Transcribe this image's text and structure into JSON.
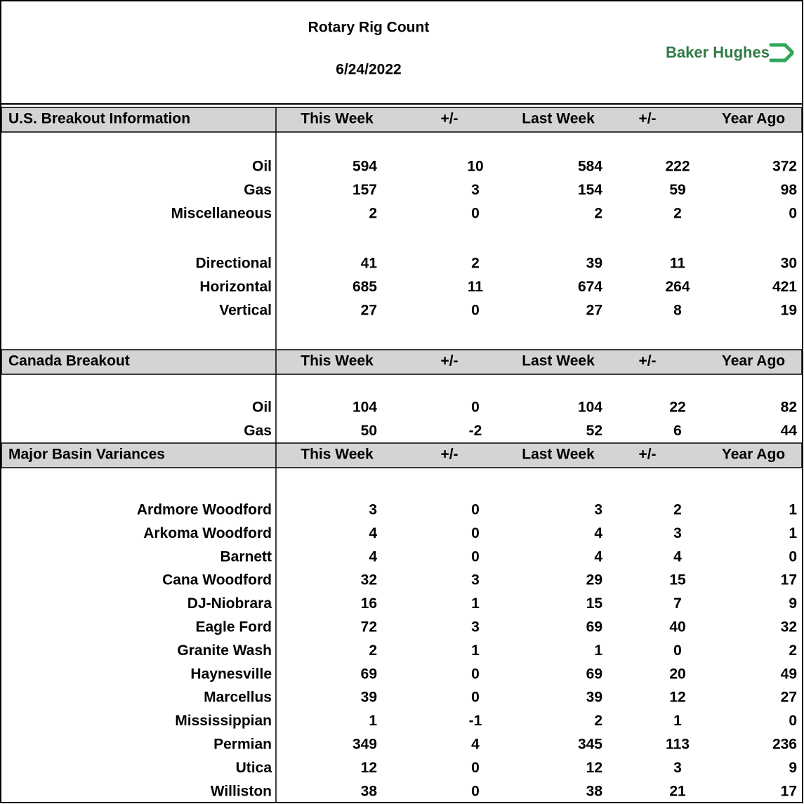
{
  "header": {
    "title": "Rotary Rig Count",
    "date": "6/24/2022",
    "logo": "Baker Hughes"
  },
  "sections": [
    {
      "title": "U.S. Breakout Information",
      "columns": [
        "This Week",
        "+/-",
        "Last Week",
        "+/-",
        "Year Ago"
      ],
      "groups": [
        [
          {
            "label": "Oil",
            "values": [
              594,
              10,
              584,
              222,
              372
            ]
          },
          {
            "label": "Gas",
            "values": [
              157,
              3,
              154,
              59,
              98
            ]
          },
          {
            "label": "Miscellaneous",
            "values": [
              2,
              0,
              2,
              2,
              0
            ]
          }
        ],
        [
          {
            "label": "Directional",
            "values": [
              41,
              2,
              39,
              11,
              30
            ]
          },
          {
            "label": "Horizontal",
            "values": [
              685,
              11,
              674,
              264,
              421
            ]
          },
          {
            "label": "Vertical",
            "values": [
              27,
              0,
              27,
              8,
              19
            ]
          }
        ]
      ]
    },
    {
      "title": "Canada Breakout",
      "columns": [
        "This Week",
        "+/-",
        "Last Week",
        "+/-",
        "Year Ago"
      ],
      "groups": [
        [
          {
            "label": "Oil",
            "values": [
              104,
              0,
              104,
              22,
              82
            ]
          },
          {
            "label": "Gas",
            "values": [
              50,
              -2,
              52,
              6,
              44
            ]
          }
        ]
      ]
    },
    {
      "title": "Major Basin Variances",
      "columns": [
        "This Week",
        "+/-",
        "Last Week",
        "+/-",
        "Year Ago"
      ],
      "groups": [
        [
          {
            "label": "Ardmore Woodford",
            "values": [
              3,
              0,
              3,
              2,
              1
            ]
          },
          {
            "label": "Arkoma Woodford",
            "values": [
              4,
              0,
              4,
              3,
              1
            ]
          },
          {
            "label": "Barnett",
            "values": [
              4,
              0,
              4,
              4,
              0
            ]
          },
          {
            "label": "Cana Woodford",
            "values": [
              32,
              3,
              29,
              15,
              17
            ]
          },
          {
            "label": "DJ-Niobrara",
            "values": [
              16,
              1,
              15,
              7,
              9
            ]
          },
          {
            "label": "Eagle Ford",
            "values": [
              72,
              3,
              69,
              40,
              32
            ]
          },
          {
            "label": "Granite Wash",
            "values": [
              2,
              1,
              1,
              0,
              2
            ]
          },
          {
            "label": "Haynesville",
            "values": [
              69,
              0,
              69,
              20,
              49
            ]
          },
          {
            "label": "Marcellus",
            "values": [
              39,
              0,
              39,
              12,
              27
            ]
          },
          {
            "label": "Mississippian",
            "values": [
              1,
              -1,
              2,
              1,
              0
            ]
          },
          {
            "label": "Permian",
            "values": [
              349,
              4,
              345,
              113,
              236
            ]
          },
          {
            "label": "Utica",
            "values": [
              12,
              0,
              12,
              3,
              9
            ]
          },
          {
            "label": "Williston",
            "values": [
              38,
              0,
              38,
              21,
              17
            ]
          }
        ]
      ]
    }
  ]
}
